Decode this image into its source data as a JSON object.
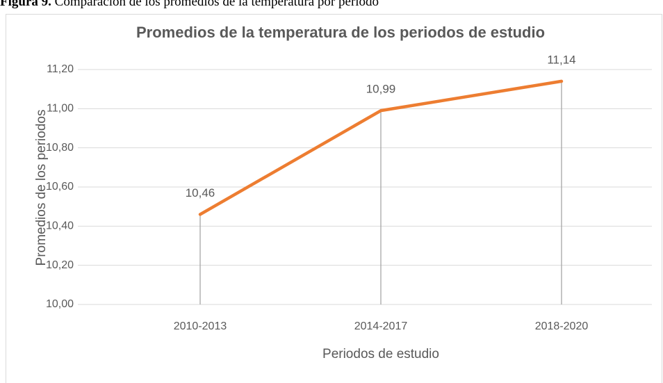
{
  "caption": {
    "label": "Figura 9.",
    "text": " Comparación de los promedios de la temperatura por periodo"
  },
  "chart_data": {
    "type": "line",
    "title": "Promedios de la temperatura de los periodos de estudio",
    "x_label": "Periodos de estudio",
    "y_label": "Promedios de los periodos",
    "categories": [
      "2010-2013",
      "2014-2017",
      "2018-2020"
    ],
    "series": [
      {
        "name": "Promedios de los periodos",
        "color": "#ed7d31",
        "values": [
          10.46,
          10.99,
          11.14
        ],
        "value_labels": [
          "10,46",
          "10,99",
          "11,14"
        ]
      }
    ],
    "ylim": [
      10,
      11.2
    ],
    "yticks": [
      {
        "value": 10,
        "label": "10,00"
      },
      {
        "value": 10.2,
        "label": "10,20"
      },
      {
        "value": 10.4,
        "label": "10,40"
      },
      {
        "value": 10.6,
        "label": "10,60"
      },
      {
        "value": 10.8,
        "label": "10,80"
      },
      {
        "value": 11,
        "label": "11,00"
      },
      {
        "value": 11.2,
        "label": "11,20"
      }
    ],
    "grid": true,
    "drop_lines": true
  }
}
